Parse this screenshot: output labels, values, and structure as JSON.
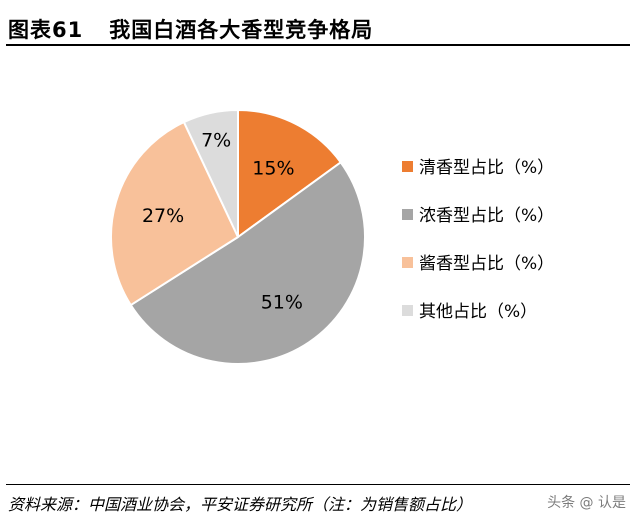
{
  "figure": {
    "number": "图表61",
    "title": "我国白酒各大香型竞争格局",
    "source": "资料来源：中国酒业协会，平安证券研究所（注：为销售额占比）",
    "watermark": "头条 @ 认是"
  },
  "chart_data": {
    "type": "pie",
    "title": "我国白酒各大香型竞争格局",
    "legend_position": "right",
    "slices": [
      {
        "name": "清香型占比（%）",
        "value": 15,
        "label": "15%",
        "color": "#ED7D31"
      },
      {
        "name": "浓香型占比（%）",
        "value": 51,
        "label": "51%",
        "color": "#A5A5A5"
      },
      {
        "name": "酱香型占比（%）",
        "value": 27,
        "label": "27%",
        "color": "#F8C19A"
      },
      {
        "name": "其他占比（%）",
        "value": 7,
        "label": "7%",
        "color": "#DCDCDC"
      }
    ]
  }
}
